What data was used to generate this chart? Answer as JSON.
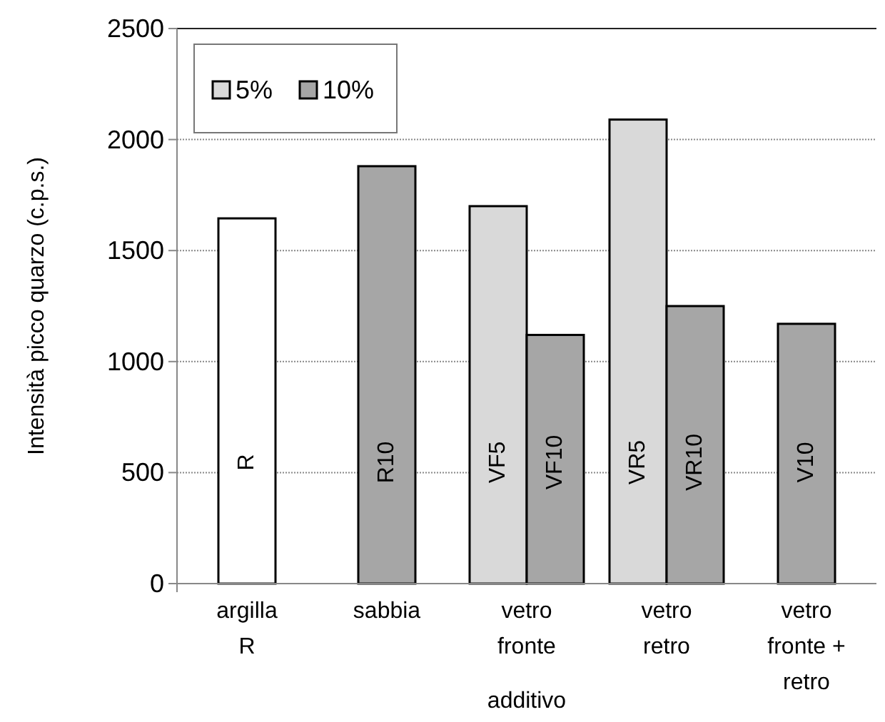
{
  "chart_data": {
    "type": "bar",
    "xlabel": "additivo",
    "ylabel": "Intensità picco quarzo (c.p.s.)",
    "categories": [
      "argilla R",
      "sabbia",
      "vetro fronte",
      "vetro retro",
      "vetro fronte + retro"
    ],
    "series": [
      {
        "color": "#ffffff",
        "values": [
          1645,
          null,
          null,
          null,
          null
        ],
        "value_labels": [
          "R",
          null,
          null,
          null,
          null
        ]
      },
      {
        "name": "5%",
        "color": "#d9d9d9",
        "values": [
          null,
          null,
          1700,
          2090,
          null
        ],
        "value_labels": [
          null,
          null,
          "VF5",
          "VR5",
          null
        ]
      },
      {
        "name": "10%",
        "color": "#a6a6a6",
        "values": [
          null,
          1880,
          1120,
          1250,
          1170
        ],
        "value_labels": [
          null,
          "R10",
          "VF10",
          "VR10",
          "V10"
        ]
      }
    ],
    "ylim": [
      0,
      2500
    ],
    "yticks": [
      0,
      500,
      1000,
      1500,
      2000,
      2500
    ],
    "grid": "y",
    "legend": "top left"
  }
}
